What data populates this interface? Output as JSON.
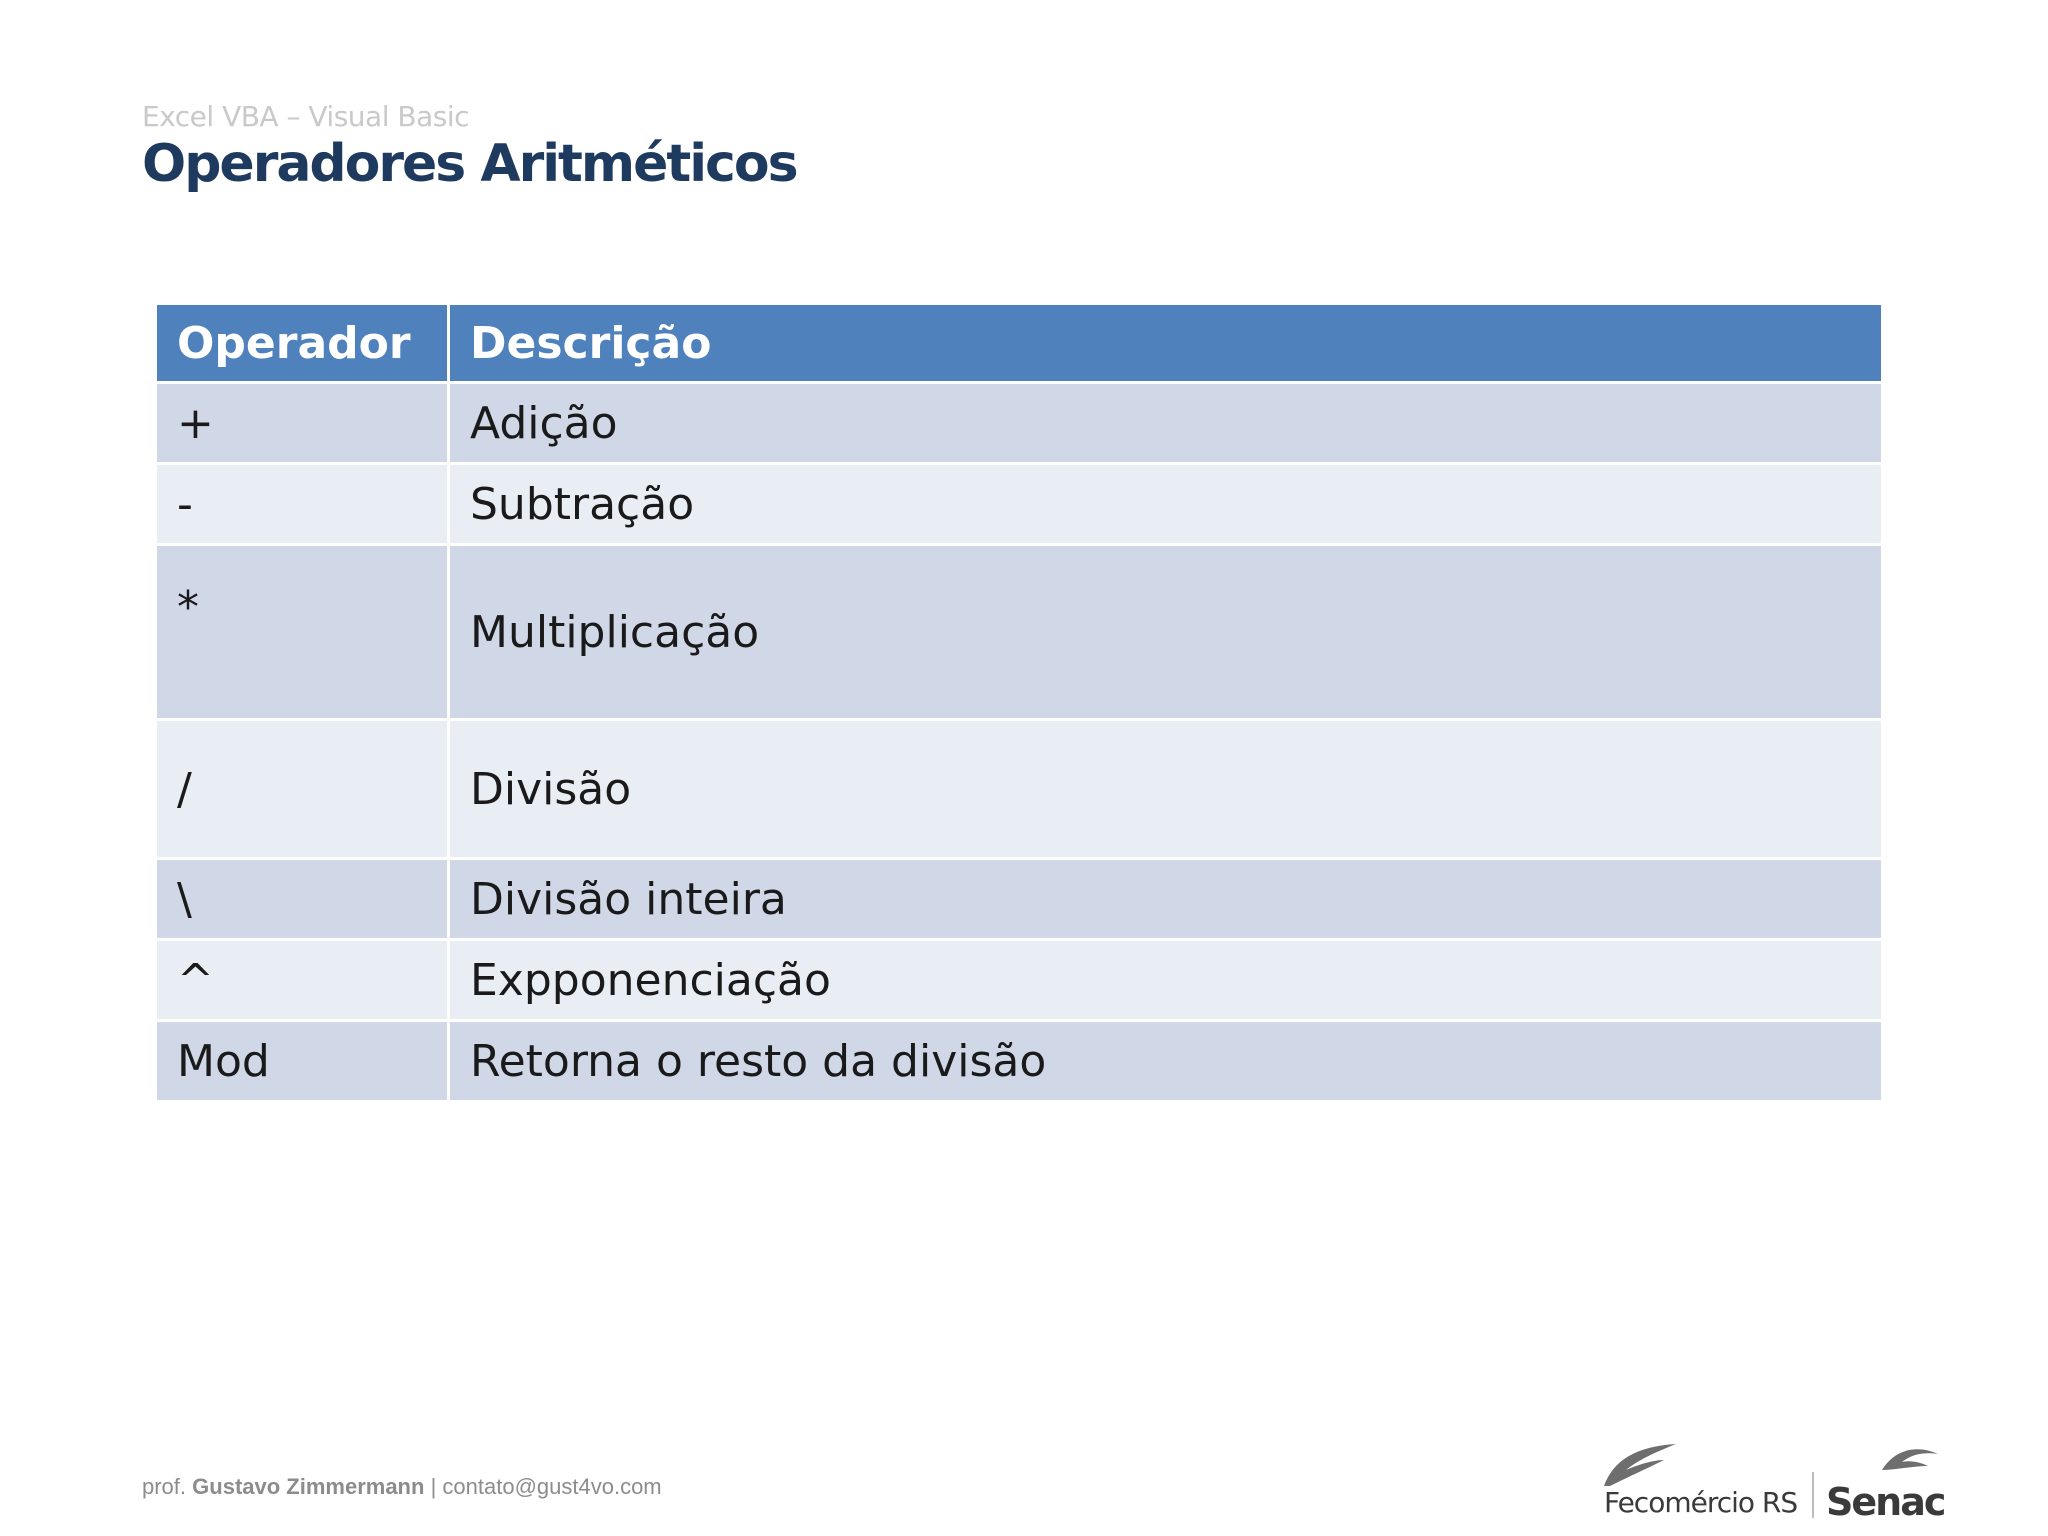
{
  "slide": {
    "subtitle": "Excel VBA – Visual Basic",
    "title": "Operadores Aritméticos"
  },
  "table": {
    "headers": [
      "Operador",
      "Descrição"
    ],
    "rows": [
      {
        "operator": "+",
        "description": "Adição"
      },
      {
        "operator": "-",
        "description": "Subtração"
      },
      {
        "operator": "*",
        "description": "Multiplicação"
      },
      {
        "operator": "/",
        "description": "Divisão"
      },
      {
        "operator": "\\",
        "description": "Divisão inteira"
      },
      {
        "operator": "^",
        "description": "Expponenciação"
      },
      {
        "operator": "Mod",
        "description": "Retorna o resto da divisão"
      }
    ]
  },
  "footer": {
    "prefix": "prof.",
    "name": "Gustavo Zimmermann",
    "separator": "|",
    "email": "contato@gust4vo.com"
  },
  "logos": {
    "fecomercio": "Fecomércio RS",
    "senac": "Senac"
  },
  "colors": {
    "header_bg": "#4f81bd",
    "row_dark": "#d0d8e8",
    "row_light": "#e9edf4",
    "title": "#1f3a5f"
  }
}
